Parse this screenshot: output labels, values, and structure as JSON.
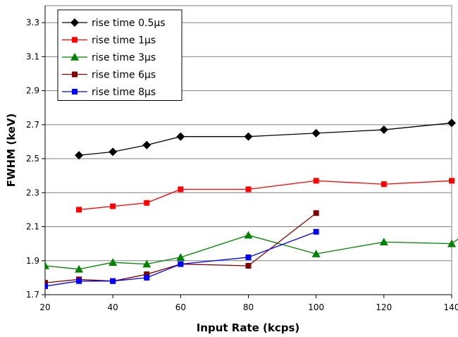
{
  "chart_data": {
    "type": "line",
    "title": "",
    "xlabel": "Input Rate (kcps)",
    "ylabel": "FWHM (keV)",
    "xlim": [
      20,
      140
    ],
    "ylim": [
      1.7,
      3.4
    ],
    "x_ticks": [
      "20",
      "40",
      "60",
      "80",
      "100",
      "120",
      "140"
    ],
    "y_ticks": [
      "1.7",
      "1.9",
      "2.1",
      "2.3",
      "2.5",
      "2.7",
      "2.9",
      "3.1",
      "3.3"
    ],
    "grid": "horizontal",
    "legend_position": "top-left",
    "series": [
      {
        "name": "rise time 0.5µs",
        "color": "#000000",
        "marker": "diamond",
        "x": [
          30,
          40,
          50,
          60,
          80,
          100,
          120,
          140
        ],
        "y": [
          2.52,
          2.54,
          2.58,
          2.63,
          2.63,
          2.65,
          2.67,
          2.71
        ]
      },
      {
        "name": "rise time 1µs",
        "color": "#ff0000",
        "marker": "square",
        "x": [
          30,
          40,
          50,
          60,
          80,
          100,
          120,
          140
        ],
        "y": [
          2.2,
          2.22,
          2.24,
          2.32,
          2.32,
          2.37,
          2.35,
          2.37
        ]
      },
      {
        "name": "rise time 3µs",
        "color": "#008000",
        "marker": "triangle",
        "x": [
          20,
          30,
          40,
          50,
          60,
          80,
          100,
          120,
          140,
          150
        ],
        "y": [
          1.87,
          1.85,
          1.89,
          1.88,
          1.92,
          2.05,
          1.94,
          2.01,
          2.0,
          2.14
        ]
      },
      {
        "name": "rise time 6µs",
        "color": "#800000",
        "marker": "square",
        "x": [
          20,
          30,
          40,
          50,
          60,
          80,
          100
        ],
        "y": [
          1.77,
          1.79,
          1.78,
          1.82,
          1.88,
          1.87,
          2.18
        ]
      },
      {
        "name": "rise time 8µs",
        "color": "#0000ff",
        "marker": "square",
        "x": [
          20,
          30,
          40,
          50,
          60,
          80,
          100
        ],
        "y": [
          1.75,
          1.78,
          1.78,
          1.8,
          1.88,
          1.92,
          2.07
        ]
      }
    ]
  }
}
